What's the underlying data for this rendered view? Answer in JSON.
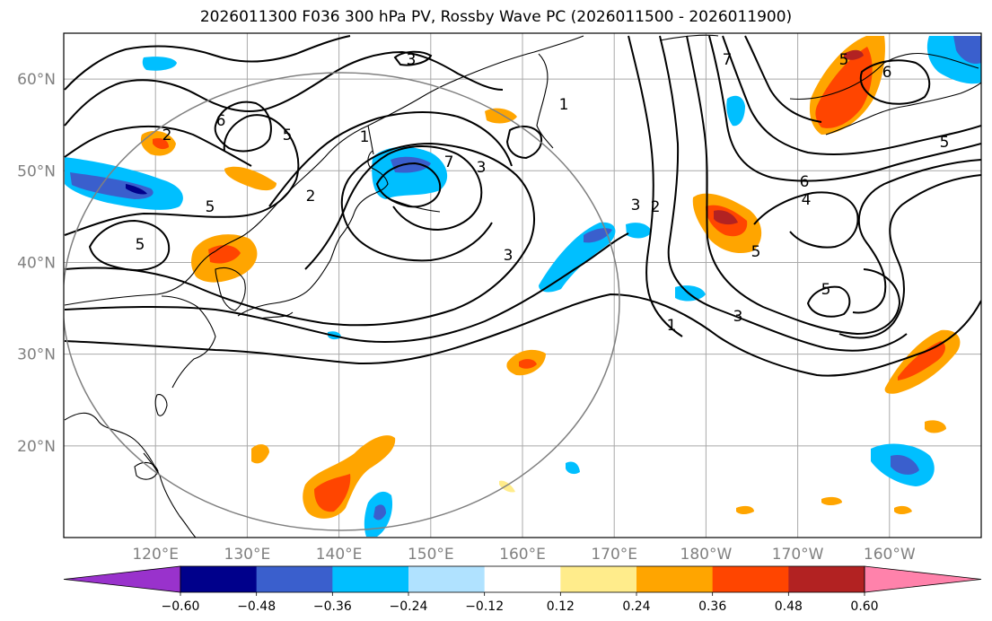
{
  "title": "2026011300 F036 300 hPa PV, Rossby Wave PC (2026011500 - 2026011900)",
  "map": {
    "lon_labels": [
      "120°E",
      "130°E",
      "140°E",
      "150°E",
      "160°E",
      "170°E",
      "180°W",
      "170°W",
      "160°W"
    ],
    "lat_labels": [
      "60°N",
      "50°N",
      "40°N",
      "30°N",
      "20°N"
    ],
    "lon_range_deg_east": [
      110,
      210
    ],
    "lat_range_deg_north": [
      10,
      65
    ],
    "grid": true,
    "range_circle": true,
    "contour_labels": [
      "3",
      "6",
      "5",
      "2",
      "1",
      "7",
      "3",
      "5",
      "2",
      "5",
      "3",
      "5",
      "1",
      "2",
      "3",
      "1",
      "3",
      "5",
      "4",
      "6",
      "5",
      "6",
      "7",
      "5"
    ]
  },
  "colorbar": {
    "ticks": [
      "−0.60",
      "−0.48",
      "−0.36",
      "−0.24",
      "−0.12",
      "0.12",
      "0.24",
      "0.36",
      "0.48",
      "0.60"
    ],
    "colors": [
      "#9932cc",
      "#00008b",
      "#3a5fcd",
      "#00bfff",
      "#b0e2ff",
      "#ffffff",
      "#ffec8b",
      "#ffa500",
      "#ff4500",
      "#b22222",
      "#ff82ab"
    ]
  },
  "colors": {
    "contour": "#000000",
    "grid": "#a9a9a9",
    "circle": "#808080",
    "coast": "#000000"
  }
}
